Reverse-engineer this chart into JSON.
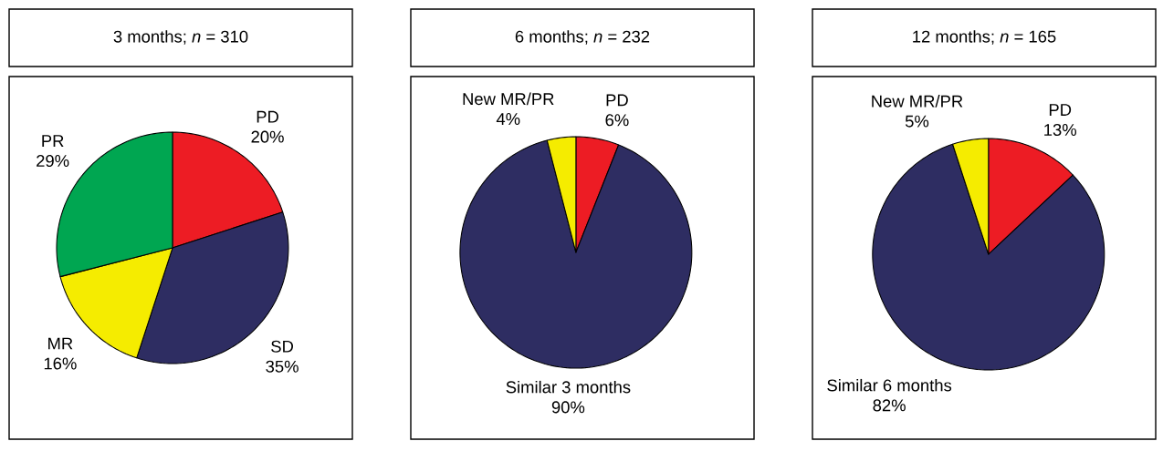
{
  "chart_data": [
    {
      "type": "pie",
      "title": "3 months; *n* = 310",
      "categories": [
        "PD",
        "SD",
        "MR",
        "PR"
      ],
      "values": [
        20,
        35,
        16,
        29
      ],
      "colors": [
        "#ed1c24",
        "#2e2d62",
        "#f5ec00",
        "#00a651"
      ],
      "value_labels": [
        "20%",
        "35%",
        "16%",
        "29%"
      ]
    },
    {
      "type": "pie",
      "title": "6 months; *n* = 232",
      "categories": [
        "PD",
        "Similar 3 months",
        "New MR/PR"
      ],
      "values": [
        6,
        90,
        4
      ],
      "colors": [
        "#ed1c24",
        "#2e2d62",
        "#f5ec00"
      ],
      "value_labels": [
        "6%",
        "90%",
        "4%"
      ]
    },
    {
      "type": "pie",
      "title": "12 months; *n* = 165",
      "categories": [
        "PD",
        "Similar 6 months",
        "New MR/PR"
      ],
      "values": [
        13,
        82,
        5
      ],
      "colors": [
        "#ed1c24",
        "#2e2d62",
        "#f5ec00"
      ],
      "value_labels": [
        "13%",
        "82%",
        "5%"
      ]
    }
  ]
}
